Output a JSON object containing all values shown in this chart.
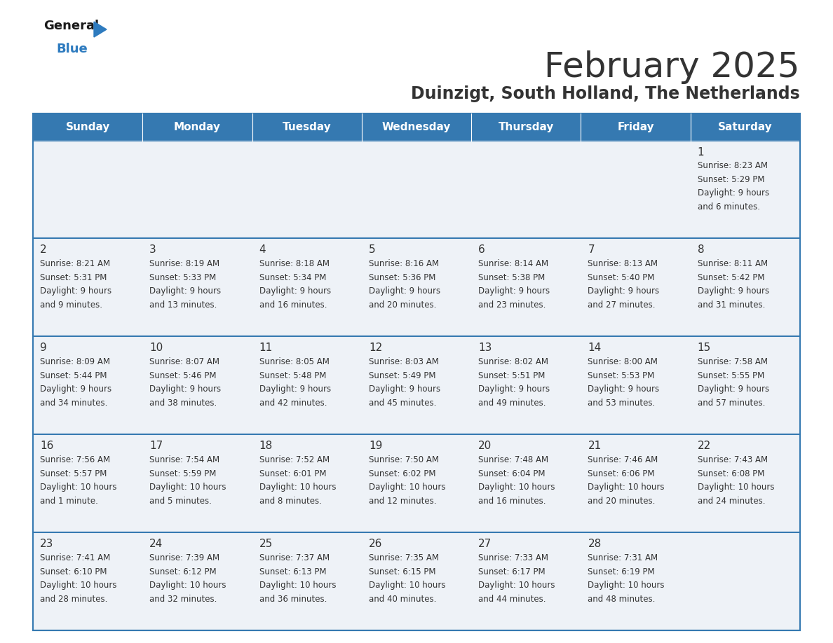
{
  "title": "February 2025",
  "subtitle": "Duinzigt, South Holland, The Netherlands",
  "header_color": "#3579b1",
  "header_text_color": "#ffffff",
  "cell_bg_even": "#eef2f7",
  "cell_bg_odd": "#eef2f7",
  "border_color": "#3579b1",
  "text_color": "#333333",
  "days_of_week": [
    "Sunday",
    "Monday",
    "Tuesday",
    "Wednesday",
    "Thursday",
    "Friday",
    "Saturday"
  ],
  "weeks": [
    [
      {
        "day": null,
        "info": null
      },
      {
        "day": null,
        "info": null
      },
      {
        "day": null,
        "info": null
      },
      {
        "day": null,
        "info": null
      },
      {
        "day": null,
        "info": null
      },
      {
        "day": null,
        "info": null
      },
      {
        "day": 1,
        "info": "Sunrise: 8:23 AM\nSunset: 5:29 PM\nDaylight: 9 hours\nand 6 minutes."
      }
    ],
    [
      {
        "day": 2,
        "info": "Sunrise: 8:21 AM\nSunset: 5:31 PM\nDaylight: 9 hours\nand 9 minutes."
      },
      {
        "day": 3,
        "info": "Sunrise: 8:19 AM\nSunset: 5:33 PM\nDaylight: 9 hours\nand 13 minutes."
      },
      {
        "day": 4,
        "info": "Sunrise: 8:18 AM\nSunset: 5:34 PM\nDaylight: 9 hours\nand 16 minutes."
      },
      {
        "day": 5,
        "info": "Sunrise: 8:16 AM\nSunset: 5:36 PM\nDaylight: 9 hours\nand 20 minutes."
      },
      {
        "day": 6,
        "info": "Sunrise: 8:14 AM\nSunset: 5:38 PM\nDaylight: 9 hours\nand 23 minutes."
      },
      {
        "day": 7,
        "info": "Sunrise: 8:13 AM\nSunset: 5:40 PM\nDaylight: 9 hours\nand 27 minutes."
      },
      {
        "day": 8,
        "info": "Sunrise: 8:11 AM\nSunset: 5:42 PM\nDaylight: 9 hours\nand 31 minutes."
      }
    ],
    [
      {
        "day": 9,
        "info": "Sunrise: 8:09 AM\nSunset: 5:44 PM\nDaylight: 9 hours\nand 34 minutes."
      },
      {
        "day": 10,
        "info": "Sunrise: 8:07 AM\nSunset: 5:46 PM\nDaylight: 9 hours\nand 38 minutes."
      },
      {
        "day": 11,
        "info": "Sunrise: 8:05 AM\nSunset: 5:48 PM\nDaylight: 9 hours\nand 42 minutes."
      },
      {
        "day": 12,
        "info": "Sunrise: 8:03 AM\nSunset: 5:49 PM\nDaylight: 9 hours\nand 45 minutes."
      },
      {
        "day": 13,
        "info": "Sunrise: 8:02 AM\nSunset: 5:51 PM\nDaylight: 9 hours\nand 49 minutes."
      },
      {
        "day": 14,
        "info": "Sunrise: 8:00 AM\nSunset: 5:53 PM\nDaylight: 9 hours\nand 53 minutes."
      },
      {
        "day": 15,
        "info": "Sunrise: 7:58 AM\nSunset: 5:55 PM\nDaylight: 9 hours\nand 57 minutes."
      }
    ],
    [
      {
        "day": 16,
        "info": "Sunrise: 7:56 AM\nSunset: 5:57 PM\nDaylight: 10 hours\nand 1 minute."
      },
      {
        "day": 17,
        "info": "Sunrise: 7:54 AM\nSunset: 5:59 PM\nDaylight: 10 hours\nand 5 minutes."
      },
      {
        "day": 18,
        "info": "Sunrise: 7:52 AM\nSunset: 6:01 PM\nDaylight: 10 hours\nand 8 minutes."
      },
      {
        "day": 19,
        "info": "Sunrise: 7:50 AM\nSunset: 6:02 PM\nDaylight: 10 hours\nand 12 minutes."
      },
      {
        "day": 20,
        "info": "Sunrise: 7:48 AM\nSunset: 6:04 PM\nDaylight: 10 hours\nand 16 minutes."
      },
      {
        "day": 21,
        "info": "Sunrise: 7:46 AM\nSunset: 6:06 PM\nDaylight: 10 hours\nand 20 minutes."
      },
      {
        "day": 22,
        "info": "Sunrise: 7:43 AM\nSunset: 6:08 PM\nDaylight: 10 hours\nand 24 minutes."
      }
    ],
    [
      {
        "day": 23,
        "info": "Sunrise: 7:41 AM\nSunset: 6:10 PM\nDaylight: 10 hours\nand 28 minutes."
      },
      {
        "day": 24,
        "info": "Sunrise: 7:39 AM\nSunset: 6:12 PM\nDaylight: 10 hours\nand 32 minutes."
      },
      {
        "day": 25,
        "info": "Sunrise: 7:37 AM\nSunset: 6:13 PM\nDaylight: 10 hours\nand 36 minutes."
      },
      {
        "day": 26,
        "info": "Sunrise: 7:35 AM\nSunset: 6:15 PM\nDaylight: 10 hours\nand 40 minutes."
      },
      {
        "day": 27,
        "info": "Sunrise: 7:33 AM\nSunset: 6:17 PM\nDaylight: 10 hours\nand 44 minutes."
      },
      {
        "day": 28,
        "info": "Sunrise: 7:31 AM\nSunset: 6:19 PM\nDaylight: 10 hours\nand 48 minutes."
      },
      {
        "day": null,
        "info": null
      }
    ]
  ],
  "title_fontsize": 36,
  "subtitle_fontsize": 17,
  "header_fontsize": 11,
  "day_num_fontsize": 11,
  "info_fontsize": 8.5,
  "logo_general_color": "#1a1a1a",
  "logo_blue_color": "#2e7bbf",
  "logo_triangle_color": "#2e7bbf"
}
